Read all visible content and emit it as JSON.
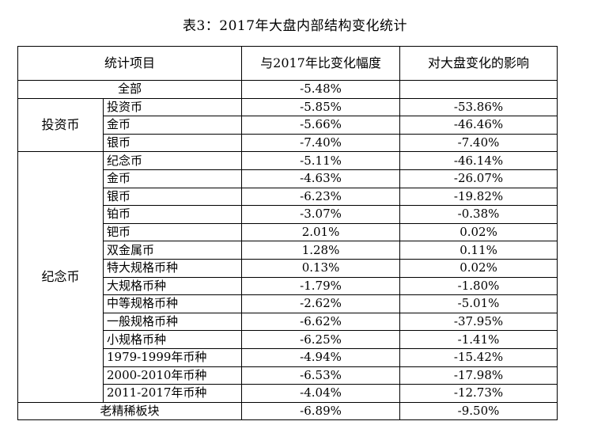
{
  "title": "表3：2017年大盘内部结构变化统计",
  "headers": {
    "item": "统计项目",
    "change": "与2017年比变化幅度",
    "impact": "对大盘变化的影响"
  },
  "total": {
    "label": "全部",
    "change": "-5.48%",
    "impact": ""
  },
  "groups": [
    {
      "label": "投资币",
      "rows": [
        {
          "label": "投资币",
          "change": "-5.85%",
          "impact": "-53.86%"
        },
        {
          "label": "金币",
          "change": "-5.66%",
          "impact": "-46.46%"
        },
        {
          "label": "银币",
          "change": "-7.40%",
          "impact": "-7.40%"
        }
      ]
    },
    {
      "label": "纪念币",
      "rows": [
        {
          "label": "纪念币",
          "change": "-5.11%",
          "impact": "-46.14%"
        },
        {
          "label": "金币",
          "change": "-4.63%",
          "impact": "-26.07%"
        },
        {
          "label": "银币",
          "change": "-6.23%",
          "impact": "-19.82%"
        },
        {
          "label": "铂币",
          "change": "-3.07%",
          "impact": "-0.38%"
        },
        {
          "label": "钯币",
          "change": "2.01%",
          "impact": "0.02%"
        },
        {
          "label": "双金属币",
          "change": "1.28%",
          "impact": "0.11%"
        },
        {
          "label": "特大规格币种",
          "change": "0.13%",
          "impact": "0.02%"
        },
        {
          "label": "大规格币种",
          "change": "-1.79%",
          "impact": "-1.80%"
        },
        {
          "label": "中等规格币种",
          "change": "-2.62%",
          "impact": "-5.01%"
        },
        {
          "label": "一般规格币种",
          "change": "-6.62%",
          "impact": "-37.95%"
        },
        {
          "label": "小规格币种",
          "change": "-6.25%",
          "impact": "-1.41%"
        },
        {
          "label": "1979-1999年币种",
          "change": "-4.94%",
          "impact": "-15.42%"
        },
        {
          "label": "2000-2010年币种",
          "change": "-6.53%",
          "impact": "-17.98%"
        },
        {
          "label": "2011-2017年币种",
          "change": "-4.04%",
          "impact": "-12.73%"
        }
      ]
    }
  ],
  "footer": {
    "label": "老精稀板块",
    "change": "-6.89%",
    "impact": "-9.50%"
  }
}
